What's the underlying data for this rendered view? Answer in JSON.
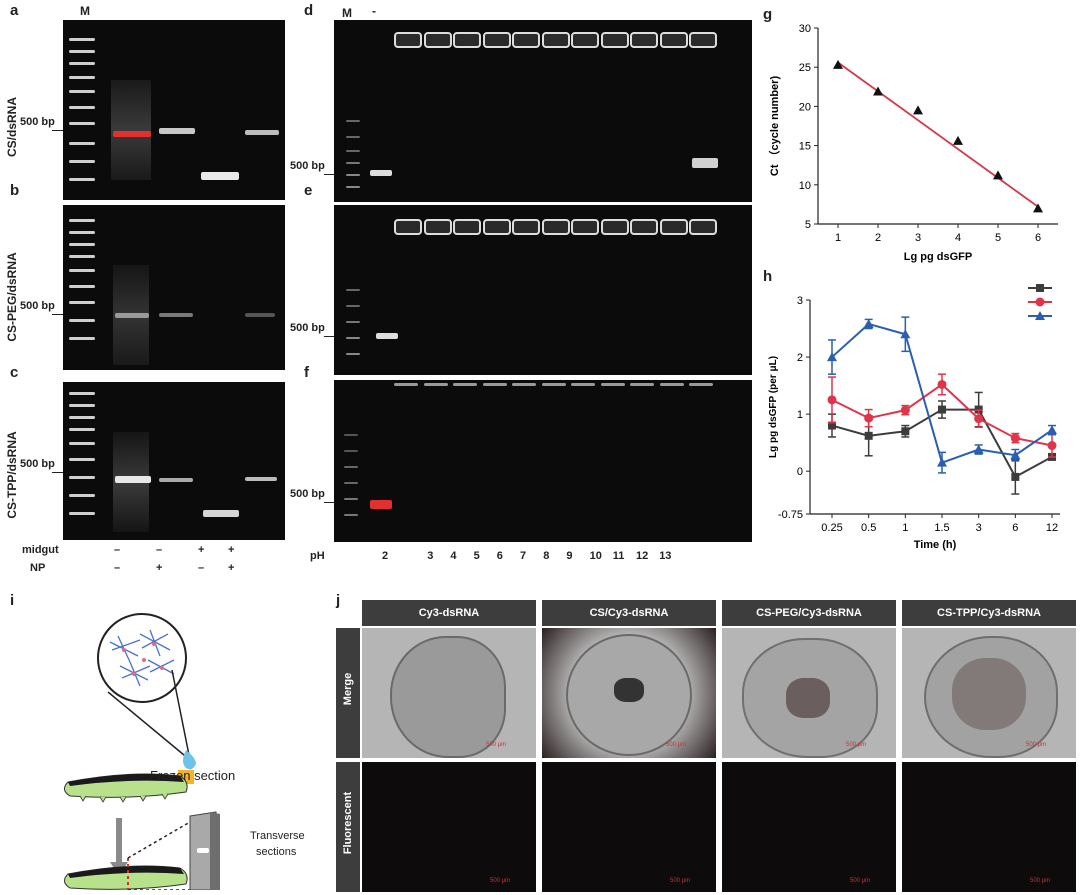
{
  "panels": {
    "a": "a",
    "b": "b",
    "c": "c",
    "d": "d",
    "e": "e",
    "f": "f",
    "g": "g",
    "h": "h",
    "i": "i",
    "j": "j"
  },
  "gel_left": {
    "marker": "M",
    "bp": "500 bp",
    "rows": [
      "CS/dsRNA",
      "CS-PEG/dsRNA",
      "CS-TPP/dsRNA"
    ],
    "midgut_label": "midgut",
    "np_label": "NP",
    "midgut": [
      "–",
      "–",
      "+",
      "+"
    ],
    "np": [
      "–",
      "+",
      "–",
      "+"
    ]
  },
  "gel_mid": {
    "marker": "M",
    "neg": "-",
    "bp": "500 bp",
    "ph_label": "pH",
    "ph": [
      "2",
      "3",
      "4",
      "5",
      "6",
      "7",
      "8",
      "9",
      "10",
      "11",
      "12",
      "13"
    ]
  },
  "chart_data": [
    {
      "type": "scatter",
      "xlabel": "Lg pg dsGFP",
      "ylabel": "Ct （cycle number)",
      "xlim": [
        0.5,
        6.5
      ],
      "ylim": [
        5,
        30
      ],
      "xticks": [
        "1",
        "2",
        "3",
        "4",
        "5",
        "6"
      ],
      "yticks": [
        "5",
        "10",
        "15",
        "20",
        "25",
        "30"
      ],
      "x": [
        1,
        2,
        3,
        4,
        5,
        6
      ],
      "y": [
        25.3,
        21.9,
        19.5,
        15.6,
        11.2,
        7.0
      ],
      "fit": {
        "x": [
          1,
          6
        ],
        "y": [
          25.6,
          7.2
        ]
      },
      "colors": {
        "point": "#111111",
        "line": "#d23a4a"
      }
    },
    {
      "type": "line",
      "xlabel": "Time (h)",
      "ylabel": "Lg pg dsGFP (per μL)",
      "categories": [
        "0.25",
        "0.5",
        "1",
        "1.5",
        "3",
        "6",
        "12"
      ],
      "yticks": [
        "-0.75",
        "0",
        "1",
        "2",
        "3"
      ],
      "ylim": [
        -0.75,
        3
      ],
      "series": [
        {
          "color": "#3c3c3c",
          "marker": "square",
          "values": [
            0.8,
            0.62,
            0.7,
            1.08,
            1.08,
            -0.1,
            0.25
          ],
          "err": [
            0.2,
            0.35,
            0.1,
            0.15,
            0.3,
            0.3,
            0.05
          ]
        },
        {
          "color": "#e0344a",
          "marker": "circle",
          "values": [
            1.25,
            0.93,
            1.07,
            1.52,
            0.92,
            0.58,
            0.45
          ],
          "err": [
            0.4,
            0.15,
            0.08,
            0.18,
            0.15,
            0.08,
            0.2
          ]
        },
        {
          "color": "#2a5fb0",
          "marker": "triangle",
          "values": [
            2.0,
            2.58,
            2.4,
            0.15,
            0.38,
            0.28,
            0.72
          ],
          "err": [
            0.3,
            0.08,
            0.3,
            0.18,
            0.08,
            0.1,
            0.08
          ]
        }
      ]
    }
  ],
  "schematic": {
    "frozen": "Frozen section",
    "transverse_1": "Transverse",
    "transverse_2": "sections"
  },
  "micro": {
    "cols": [
      "Cy3-dsRNA",
      "CS/Cy3-dsRNA",
      "CS-PEG/Cy3-dsRNA",
      "CS-TPP/Cy3-dsRNA"
    ],
    "rows": [
      "Merge",
      "Fluorescent"
    ],
    "scale": "500 μm"
  }
}
